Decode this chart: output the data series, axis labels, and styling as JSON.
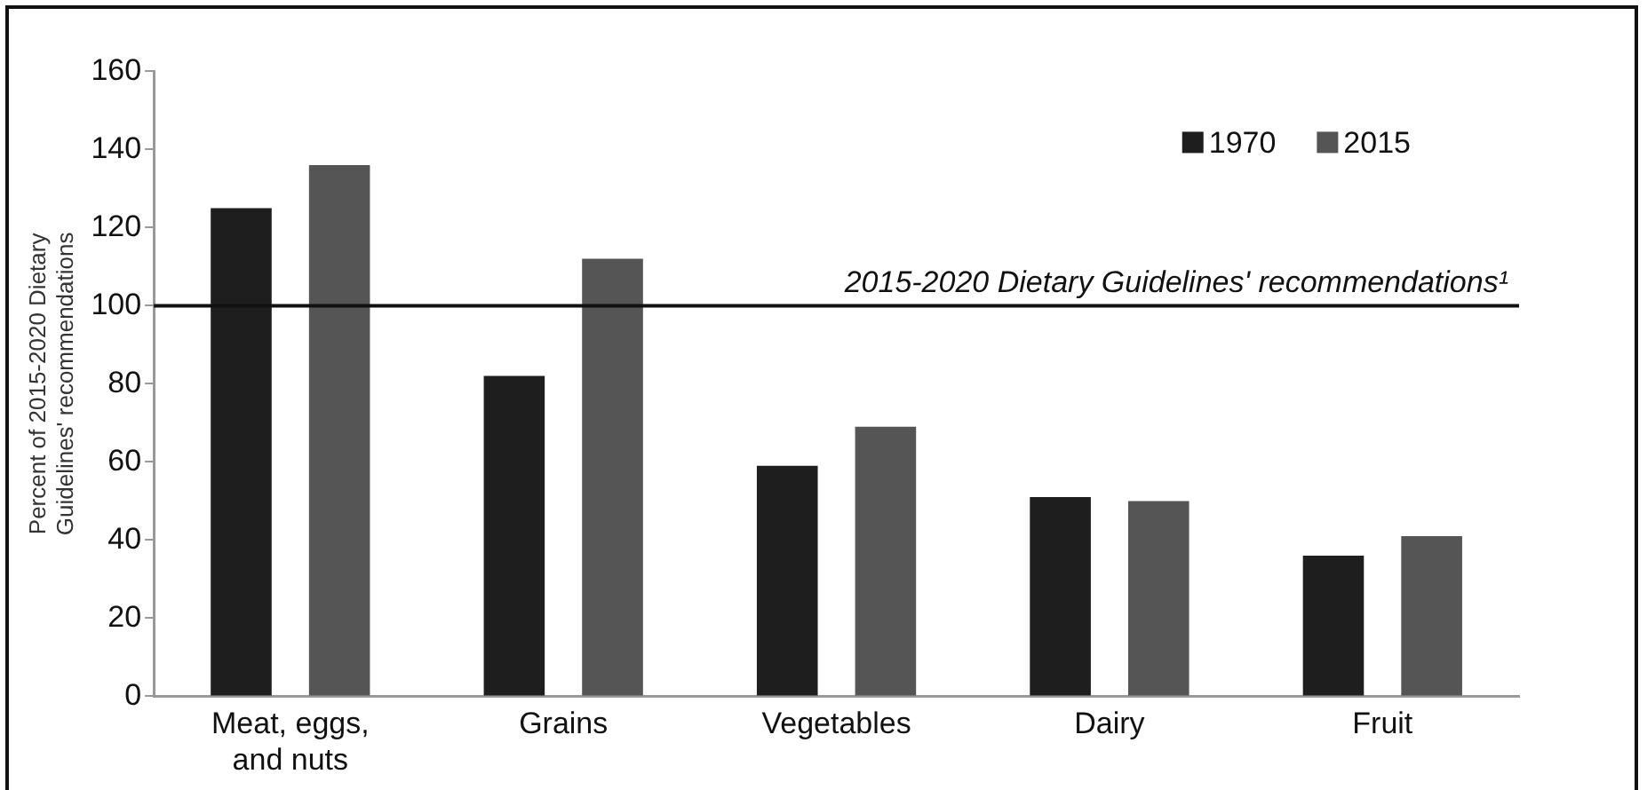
{
  "chart_data": {
    "type": "bar",
    "ylabel": "Percent of 2015-2020 Dietary Guidelines' recommendations",
    "categories": [
      "Meat, eggs, and nuts",
      "Grains",
      "Vegetables",
      "Dairy",
      "Fruit"
    ],
    "series": [
      {
        "name": "1970",
        "color": "#1e1e1e",
        "values": [
          125,
          82,
          59,
          51,
          36
        ]
      },
      {
        "name": "2015",
        "color": "#555555",
        "values": [
          136,
          112,
          69,
          50,
          41
        ]
      }
    ],
    "ylim": [
      0,
      160
    ],
    "yticks": [
      0,
      20,
      40,
      60,
      80,
      100,
      120,
      140,
      160
    ],
    "grid": false,
    "legend": "top right",
    "ref_lines": [
      {
        "axis": "y",
        "value": 100,
        "label": "2015-2020 Dietary Guidelines' recommendations¹",
        "color": "#111111"
      }
    ]
  }
}
